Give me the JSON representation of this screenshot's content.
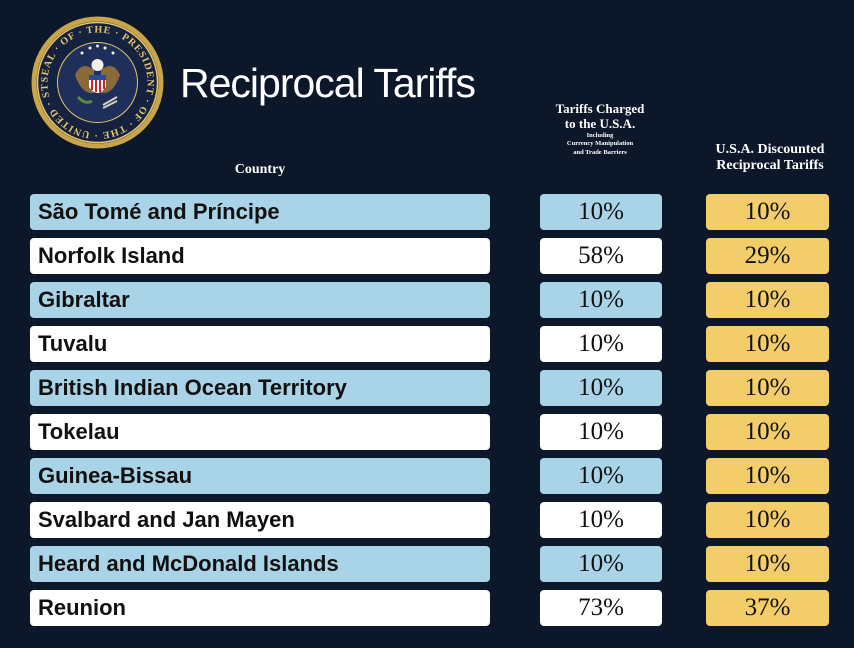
{
  "header": {
    "title": "Reciprocal Tariffs",
    "seal_text": "SEAL OF THE PRESIDENT OF THE UNITED STATES"
  },
  "columns": {
    "country": "Country",
    "charged_line1": "Tariffs Charged",
    "charged_line2": "to the U.S.A.",
    "charged_sub1": "Including",
    "charged_sub2": "Currency Manipulation",
    "charged_sub3": "and Trade Barriers",
    "reciprocal_line1": "U.S.A. Discounted",
    "reciprocal_line2": "Reciprocal Tariffs"
  },
  "colors": {
    "background": "#0c1729",
    "row_blue": "#a9d3e6",
    "row_white": "#ffffff",
    "reciprocal_gold": "#f2cd6a"
  },
  "rows": [
    {
      "country": "São Tomé and Príncipe",
      "charged": "10%",
      "reciprocal": "10%"
    },
    {
      "country": "Norfolk Island",
      "charged": "58%",
      "reciprocal": "29%"
    },
    {
      "country": "Gibraltar",
      "charged": "10%",
      "reciprocal": "10%"
    },
    {
      "country": "Tuvalu",
      "charged": "10%",
      "reciprocal": "10%"
    },
    {
      "country": "British Indian Ocean Territory",
      "charged": "10%",
      "reciprocal": "10%"
    },
    {
      "country": "Tokelau",
      "charged": "10%",
      "reciprocal": "10%"
    },
    {
      "country": "Guinea-Bissau",
      "charged": "10%",
      "reciprocal": "10%"
    },
    {
      "country": "Svalbard and Jan Mayen",
      "charged": "10%",
      "reciprocal": "10%"
    },
    {
      "country": "Heard and McDonald Islands",
      "charged": "10%",
      "reciprocal": "10%"
    },
    {
      "country": "Reunion",
      "charged": "73%",
      "reciprocal": "37%"
    }
  ]
}
